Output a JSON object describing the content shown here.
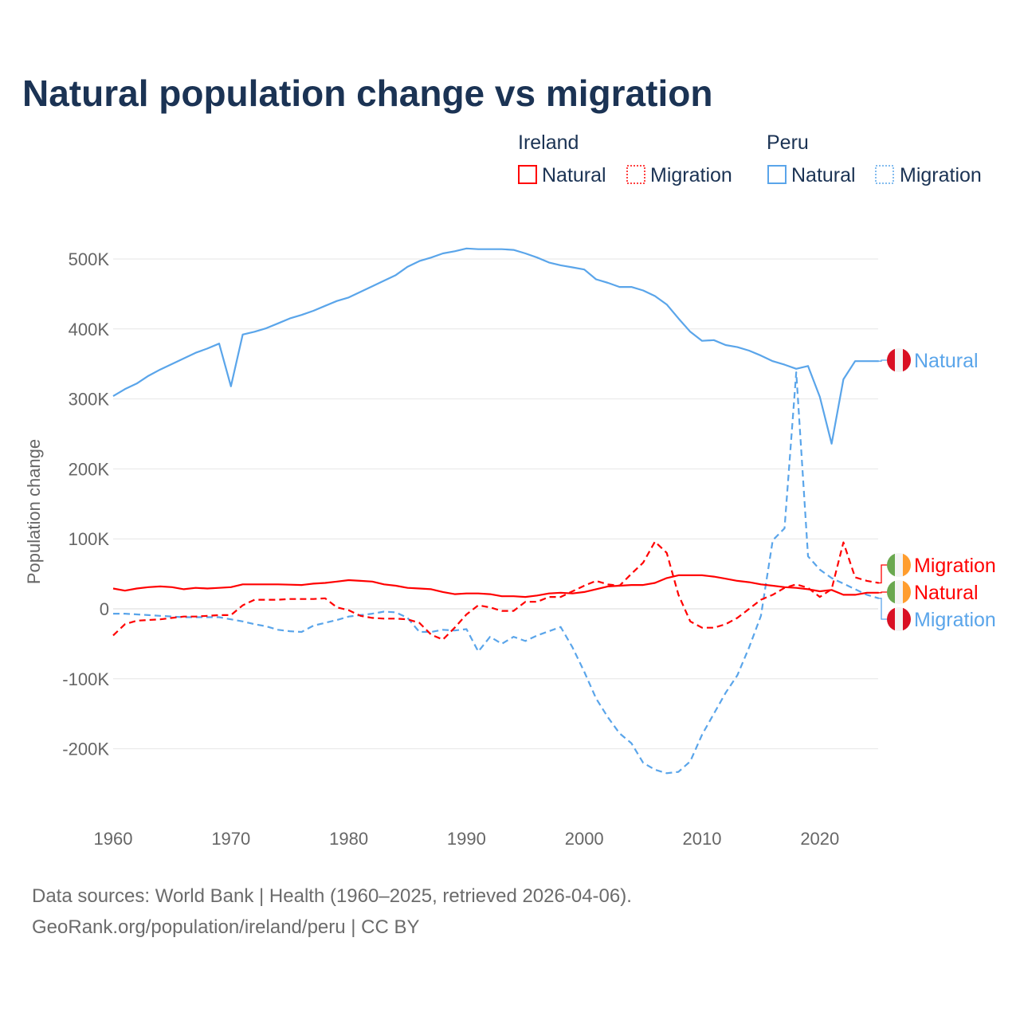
{
  "colors": {
    "ireland": "#ff0000",
    "peru": "#5aa5ea",
    "title": "#1b3354"
  },
  "chart_data": {
    "type": "line",
    "title": "Natural population change vs migration",
    "xlabel": "",
    "ylabel": "Population change",
    "xlim": [
      1960,
      2025
    ],
    "ylim": [
      -250000,
      540000
    ],
    "grid": true,
    "x_ticks": [
      "1960",
      "1970",
      "1980",
      "1990",
      "2000",
      "2010",
      "2020"
    ],
    "y_ticks": [
      {
        "value": 500000,
        "label": "500K"
      },
      {
        "value": 400000,
        "label": "400K"
      },
      {
        "value": 300000,
        "label": "300K"
      },
      {
        "value": 200000,
        "label": "200K"
      },
      {
        "value": 100000,
        "label": "100K"
      },
      {
        "value": 0,
        "label": "0"
      },
      {
        "value": -100000,
        "label": "-100K"
      },
      {
        "value": -200000,
        "label": "-200K"
      }
    ],
    "legend": {
      "placement": "top-right",
      "groups": [
        {
          "name": "Ireland",
          "items": [
            "Natural",
            "Migration"
          ]
        },
        {
          "name": "Peru",
          "items": [
            "Natural",
            "Migration"
          ]
        }
      ]
    },
    "x_start": 1960,
    "series": [
      {
        "name": "Peru Natural",
        "country": "peru",
        "kind": "Natural",
        "end_label": "Natural",
        "values": [
          304,
          314,
          322,
          333,
          342,
          350,
          358,
          366,
          372,
          379,
          318,
          392,
          396,
          401,
          408,
          415,
          420,
          426,
          433,
          440,
          445,
          453,
          461,
          469,
          477,
          489,
          497,
          502,
          508,
          511,
          515,
          514,
          514,
          514,
          513,
          508,
          502,
          495,
          491,
          488,
          485,
          471,
          466,
          460,
          460,
          455,
          447,
          435,
          415,
          396,
          383,
          384,
          377,
          374,
          369,
          362,
          354,
          349,
          343,
          347,
          303,
          236,
          328,
          354,
          354,
          354
        ]
      },
      {
        "name": "Peru Migration",
        "country": "peru",
        "kind": "Migration",
        "end_label": "Migration",
        "values": [
          -7,
          -7,
          -8,
          -9,
          -10,
          -11,
          -12,
          -12,
          -12,
          -12,
          -15,
          -18,
          -22,
          -25,
          -30,
          -32,
          -33,
          -24,
          -20,
          -16,
          -11,
          -9,
          -7,
          -4,
          -5,
          -13,
          -33,
          -33,
          -30,
          -31,
          -29,
          -61,
          -40,
          -50,
          -40,
          -46,
          -38,
          -32,
          -26,
          -55,
          -90,
          -128,
          -155,
          -178,
          -192,
          -220,
          -230,
          -235,
          -233,
          -218,
          -180,
          -150,
          -120,
          -95,
          -55,
          -10,
          98,
          115,
          338,
          75,
          56,
          44,
          36,
          28,
          20,
          15
        ]
      },
      {
        "name": "Ireland Natural",
        "country": "ireland",
        "kind": "Natural",
        "end_label": "Natural",
        "values": [
          29,
          26,
          29,
          31,
          32,
          31,
          28,
          30,
          29,
          30,
          31,
          35,
          35,
          35,
          35,
          34.5,
          34,
          36,
          37,
          39,
          41,
          40,
          39,
          35,
          33,
          30,
          29,
          28,
          24,
          21,
          22,
          22,
          21,
          18,
          18,
          17,
          19,
          22,
          23,
          22,
          24,
          28,
          32,
          33,
          34,
          34,
          37,
          44,
          48,
          48,
          48,
          46,
          43,
          40,
          38,
          35,
          33,
          31,
          30,
          28,
          25,
          27,
          20,
          20,
          23,
          23
        ]
      },
      {
        "name": "Ireland Migration",
        "country": "ireland",
        "kind": "Migration",
        "end_label": "Migration",
        "values": [
          -38,
          -22,
          -17,
          -16,
          -15,
          -13,
          -11,
          -11,
          -10,
          -9,
          -9,
          5,
          13,
          13,
          13,
          14,
          14,
          14,
          15,
          2,
          -2,
          -10,
          -13,
          -14,
          -14,
          -15,
          -20,
          -37,
          -44,
          -27,
          -8,
          5,
          2,
          -3,
          -3,
          10,
          10,
          17,
          17,
          25,
          33,
          40,
          35,
          33,
          50,
          66,
          96,
          80,
          20,
          -18,
          -27,
          -27,
          -22,
          -13,
          0,
          13,
          20,
          30,
          35,
          30,
          17,
          28,
          95,
          45,
          40,
          37
        ]
      }
    ],
    "value_unit": "thousands"
  },
  "source": {
    "line1": "Data sources: World Bank | Health (1960–2025, retrieved 2026-04-06).",
    "line2": "GeoRank.org/population/ireland/peru | CC BY"
  }
}
